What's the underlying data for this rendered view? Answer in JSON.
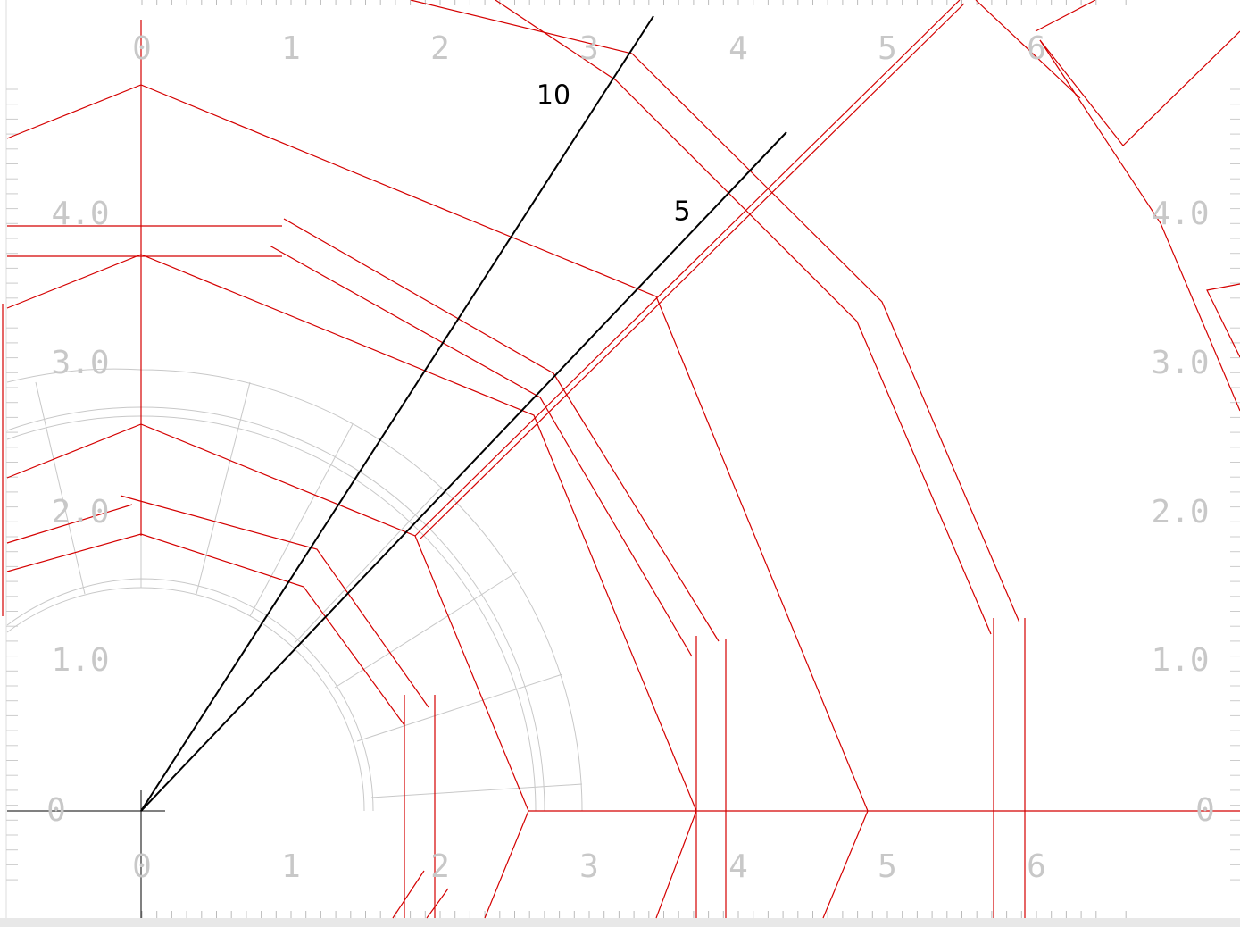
{
  "rulers": {
    "top": [
      "0",
      "1",
      "2",
      "3",
      "4",
      "5",
      "6"
    ],
    "bottom": [
      "0",
      "1",
      "2",
      "3",
      "4",
      "5",
      "6"
    ],
    "left": [
      "4.0",
      "3.0",
      "2.0",
      "1.0",
      "0"
    ],
    "right": [
      "4.0",
      "3.0",
      "2.0",
      "1.0",
      "0"
    ]
  },
  "labels": [
    "10",
    "5"
  ]
}
